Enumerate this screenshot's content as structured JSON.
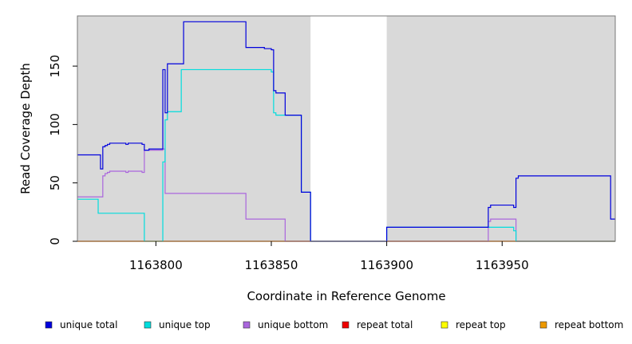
{
  "chart_data": {
    "type": "line",
    "title": "",
    "xlabel": "Coordinate in Reference Genome",
    "ylabel": "Read Coverage Depth",
    "xlim": [
      1163766,
      1163999
    ],
    "ylim": [
      0,
      193
    ],
    "x_ticks": [
      1163800,
      1163850,
      1163900,
      1163950
    ],
    "y_ticks": [
      0,
      50,
      100,
      150
    ],
    "grid": false,
    "background_color": "#d9d9d9",
    "gap_regions": [
      [
        1163867,
        1163900
      ]
    ],
    "legend_position": "bottom",
    "series": [
      {
        "name": "unique total",
        "color": "#0000dd",
        "points": [
          [
            1163766,
            74
          ],
          [
            1163776,
            74
          ],
          [
            1163776,
            62
          ],
          [
            1163777,
            62
          ],
          [
            1163777,
            81
          ],
          [
            1163778,
            81
          ],
          [
            1163778,
            82
          ],
          [
            1163779,
            82
          ],
          [
            1163779,
            83
          ],
          [
            1163780,
            83
          ],
          [
            1163780,
            84
          ],
          [
            1163787,
            84
          ],
          [
            1163787,
            83
          ],
          [
            1163788,
            83
          ],
          [
            1163788,
            84
          ],
          [
            1163794,
            84
          ],
          [
            1163794,
            83
          ],
          [
            1163795,
            83
          ],
          [
            1163795,
            78
          ],
          [
            1163797,
            78
          ],
          [
            1163797,
            79
          ],
          [
            1163803,
            79
          ],
          [
            1163803,
            147
          ],
          [
            1163804,
            147
          ],
          [
            1163804,
            110
          ],
          [
            1163805,
            110
          ],
          [
            1163805,
            152
          ],
          [
            1163812,
            152
          ],
          [
            1163812,
            188
          ],
          [
            1163839,
            188
          ],
          [
            1163839,
            166
          ],
          [
            1163847,
            166
          ],
          [
            1163847,
            165
          ],
          [
            1163850,
            165
          ],
          [
            1163850,
            164
          ],
          [
            1163851,
            164
          ],
          [
            1163851,
            129
          ],
          [
            1163852,
            129
          ],
          [
            1163852,
            127
          ],
          [
            1163856,
            127
          ],
          [
            1163856,
            108
          ],
          [
            1163863,
            108
          ],
          [
            1163863,
            42
          ],
          [
            1163867,
            42
          ],
          [
            1163867,
            0
          ],
          [
            1163900,
            0
          ],
          [
            1163900,
            12
          ],
          [
            1163944,
            12
          ],
          [
            1163944,
            29
          ],
          [
            1163945,
            29
          ],
          [
            1163945,
            31
          ],
          [
            1163955,
            31
          ],
          [
            1163955,
            29
          ],
          [
            1163956,
            29
          ],
          [
            1163956,
            54
          ],
          [
            1163957,
            54
          ],
          [
            1163957,
            56
          ],
          [
            1163997,
            56
          ],
          [
            1163997,
            19
          ],
          [
            1163999,
            19
          ]
        ]
      },
      {
        "name": "unique top",
        "color": "#00dddd",
        "points": [
          [
            1163766,
            36
          ],
          [
            1163775,
            36
          ],
          [
            1163775,
            24
          ],
          [
            1163795,
            24
          ],
          [
            1163795,
            0
          ],
          [
            1163803,
            0
          ],
          [
            1163803,
            68
          ],
          [
            1163804,
            68
          ],
          [
            1163804,
            104
          ],
          [
            1163805,
            104
          ],
          [
            1163805,
            111
          ],
          [
            1163811,
            111
          ],
          [
            1163811,
            147
          ],
          [
            1163839,
            147
          ],
          [
            1163839,
            147
          ],
          [
            1163850,
            147
          ],
          [
            1163850,
            145
          ],
          [
            1163851,
            145
          ],
          [
            1163851,
            110
          ],
          [
            1163852,
            110
          ],
          [
            1163852,
            108
          ],
          [
            1163863,
            108
          ],
          [
            1163863,
            42
          ],
          [
            1163867,
            42
          ],
          [
            1163867,
            0
          ],
          [
            1163900,
            0
          ],
          [
            1163900,
            12
          ],
          [
            1163944,
            12
          ],
          [
            1163944,
            12
          ],
          [
            1163955,
            12
          ],
          [
            1163955,
            9
          ],
          [
            1163956,
            9
          ],
          [
            1163956,
            0
          ],
          [
            1163999,
            0
          ]
        ]
      },
      {
        "name": "unique bottom",
        "color": "#aa66dd",
        "points": [
          [
            1163766,
            38
          ],
          [
            1163776,
            38
          ],
          [
            1163776,
            38
          ],
          [
            1163777,
            38
          ],
          [
            1163777,
            56
          ],
          [
            1163778,
            56
          ],
          [
            1163778,
            58
          ],
          [
            1163779,
            58
          ],
          [
            1163779,
            59
          ],
          [
            1163780,
            59
          ],
          [
            1163780,
            60
          ],
          [
            1163787,
            60
          ],
          [
            1163787,
            59
          ],
          [
            1163788,
            59
          ],
          [
            1163788,
            60
          ],
          [
            1163794,
            60
          ],
          [
            1163794,
            59
          ],
          [
            1163795,
            59
          ],
          [
            1163795,
            78
          ],
          [
            1163795,
            78
          ],
          [
            1163803,
            78
          ],
          [
            1163803,
            79
          ],
          [
            1163804,
            79
          ],
          [
            1163804,
            41
          ],
          [
            1163839,
            41
          ],
          [
            1163839,
            19
          ],
          [
            1163856,
            19
          ],
          [
            1163856,
            0
          ],
          [
            1163944,
            0
          ],
          [
            1163944,
            17
          ],
          [
            1163945,
            17
          ],
          [
            1163945,
            19
          ],
          [
            1163956,
            19
          ],
          [
            1163956,
            0
          ],
          [
            1163999,
            0
          ]
        ]
      },
      {
        "name": "repeat total",
        "color": "#ee0000",
        "points": [
          [
            1163766,
            0
          ],
          [
            1163999,
            0
          ]
        ]
      },
      {
        "name": "repeat top",
        "color": "#ffff00",
        "points": [
          [
            1163766,
            0
          ],
          [
            1163999,
            0
          ]
        ]
      },
      {
        "name": "repeat bottom",
        "color": "#ee9900",
        "points": [
          [
            1163766,
            0
          ],
          [
            1163999,
            0
          ]
        ]
      }
    ]
  }
}
